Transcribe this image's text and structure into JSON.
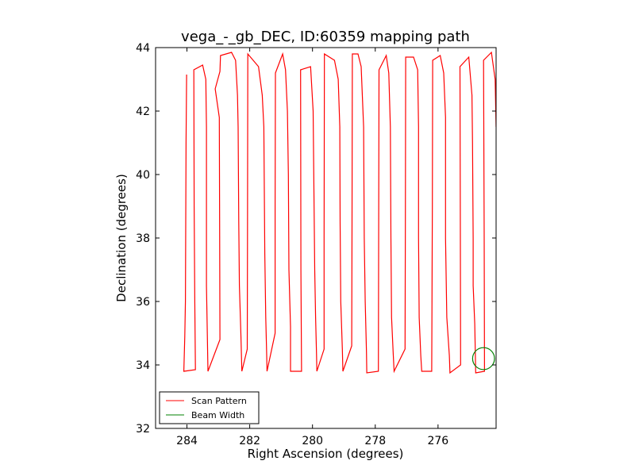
{
  "chart_data": {
    "type": "line",
    "title": "vega_-_gb_DEC, ID:60359 mapping path",
    "xlabel": "Right Ascension (degrees)",
    "ylabel": "Declination (degrees)",
    "xlim": [
      285.0,
      274.15
    ],
    "ylim": [
      32,
      44
    ],
    "x_ticks": [
      284,
      282,
      280,
      278,
      276
    ],
    "y_ticks": [
      32,
      34,
      36,
      38,
      40,
      42,
      44
    ],
    "x_tick_labels": [
      "284",
      "282",
      "280",
      "278",
      "276"
    ],
    "y_tick_labels": [
      "32",
      "34",
      "36",
      "38",
      "40",
      "42",
      "44"
    ],
    "grid": false,
    "legend_position": "lower-left",
    "series": [
      {
        "name": "Scan Pattern",
        "color": "#ff0000",
        "points": [
          [
            284.01,
            43.15
          ],
          [
            284.03,
            41.0
          ],
          [
            284.04,
            38.5
          ],
          [
            284.05,
            36.0
          ],
          [
            284.07,
            34.9
          ],
          [
            284.1,
            33.8
          ],
          [
            283.73,
            33.85
          ],
          [
            283.75,
            36.0
          ],
          [
            283.77,
            39.0
          ],
          [
            283.78,
            43.3
          ],
          [
            283.5,
            43.45
          ],
          [
            283.4,
            43.0
          ],
          [
            283.38,
            41.5
          ],
          [
            283.38,
            36.5
          ],
          [
            283.35,
            34.95
          ],
          [
            283.33,
            33.8
          ],
          [
            282.95,
            34.8
          ],
          [
            282.96,
            38.5
          ],
          [
            282.97,
            41.8
          ],
          [
            283.1,
            42.7
          ],
          [
            282.95,
            43.25
          ],
          [
            282.93,
            43.75
          ],
          [
            282.58,
            43.85
          ],
          [
            282.45,
            43.6
          ],
          [
            282.39,
            42.5
          ],
          [
            282.37,
            41.5
          ],
          [
            282.35,
            38.5
          ],
          [
            282.33,
            36.5
          ],
          [
            282.28,
            34.95
          ],
          [
            282.25,
            33.8
          ],
          [
            282.08,
            34.5
          ],
          [
            282.07,
            38.0
          ],
          [
            282.06,
            43.8
          ],
          [
            281.72,
            43.4
          ],
          [
            281.6,
            42.5
          ],
          [
            281.55,
            41.5
          ],
          [
            281.52,
            37.5
          ],
          [
            281.49,
            35.5
          ],
          [
            281.46,
            34.3
          ],
          [
            281.45,
            33.8
          ],
          [
            281.19,
            35.0
          ],
          [
            281.19,
            39.0
          ],
          [
            281.18,
            43.2
          ],
          [
            280.95,
            43.8
          ],
          [
            280.86,
            43.3
          ],
          [
            280.8,
            42.0
          ],
          [
            280.77,
            40.0
          ],
          [
            280.75,
            37.0
          ],
          [
            280.7,
            35.2
          ],
          [
            280.7,
            33.8
          ],
          [
            280.35,
            33.8
          ],
          [
            280.37,
            37.0
          ],
          [
            280.38,
            43.3
          ],
          [
            280.06,
            43.4
          ],
          [
            279.98,
            42.0
          ],
          [
            279.95,
            39.0
          ],
          [
            279.93,
            37.0
          ],
          [
            279.9,
            35.5
          ],
          [
            279.87,
            34.3
          ],
          [
            279.86,
            33.8
          ],
          [
            279.63,
            34.5
          ],
          [
            279.63,
            38.0
          ],
          [
            279.62,
            43.8
          ],
          [
            279.3,
            43.6
          ],
          [
            279.18,
            43.0
          ],
          [
            279.13,
            41.5
          ],
          [
            279.12,
            38.5
          ],
          [
            279.1,
            36.0
          ],
          [
            279.05,
            34.5
          ],
          [
            279.03,
            33.8
          ],
          [
            278.75,
            34.6
          ],
          [
            278.74,
            38.5
          ],
          [
            278.73,
            43.8
          ],
          [
            278.55,
            43.8
          ],
          [
            278.45,
            43.4
          ],
          [
            278.37,
            41.5
          ],
          [
            278.35,
            38.0
          ],
          [
            278.32,
            36.0
          ],
          [
            278.28,
            34.4
          ],
          [
            278.27,
            33.75
          ],
          [
            277.9,
            33.8
          ],
          [
            277.89,
            38.5
          ],
          [
            277.88,
            43.3
          ],
          [
            277.65,
            43.75
          ],
          [
            277.57,
            43.2
          ],
          [
            277.52,
            41.5
          ],
          [
            277.5,
            38.0
          ],
          [
            277.48,
            35.5
          ],
          [
            277.43,
            34.4
          ],
          [
            277.4,
            33.8
          ],
          [
            277.05,
            34.5
          ],
          [
            277.04,
            38.5
          ],
          [
            277.03,
            43.7
          ],
          [
            276.78,
            43.7
          ],
          [
            276.65,
            43.3
          ],
          [
            276.62,
            41.5
          ],
          [
            276.62,
            38.0
          ],
          [
            276.6,
            35.5
          ],
          [
            276.55,
            34.3
          ],
          [
            276.52,
            33.8
          ],
          [
            276.2,
            33.8
          ],
          [
            276.18,
            39.0
          ],
          [
            276.17,
            43.6
          ],
          [
            275.93,
            43.75
          ],
          [
            275.82,
            43.2
          ],
          [
            275.76,
            41.8
          ],
          [
            275.76,
            38.0
          ],
          [
            275.72,
            35.5
          ],
          [
            275.64,
            34.3
          ],
          [
            275.62,
            33.75
          ],
          [
            275.28,
            34.0
          ],
          [
            275.29,
            39.0
          ],
          [
            275.3,
            43.4
          ],
          [
            275.02,
            43.7
          ],
          [
            274.92,
            42.5
          ],
          [
            274.9,
            41.0
          ],
          [
            274.88,
            38.0
          ],
          [
            274.88,
            36.5
          ],
          [
            274.83,
            35.3
          ],
          [
            274.8,
            33.75
          ],
          [
            274.52,
            33.8
          ],
          [
            274.53,
            38.0
          ],
          [
            274.55,
            43.6
          ],
          [
            274.3,
            43.85
          ],
          [
            274.18,
            43.0
          ],
          [
            274.15,
            41.5
          ]
        ]
      },
      {
        "name": "Beam Width",
        "color": "#008000",
        "circle": {
          "center": [
            274.55,
            34.2
          ],
          "radius": 0.35
        }
      }
    ]
  }
}
